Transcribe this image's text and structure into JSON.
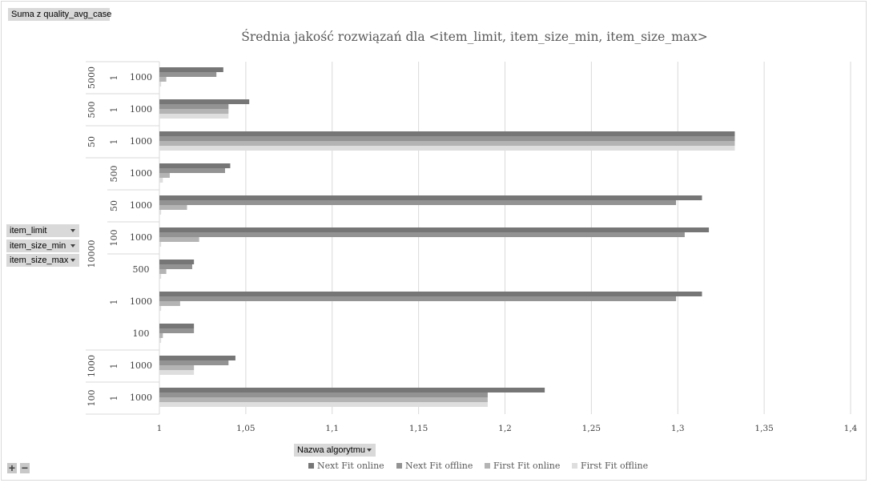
{
  "value_field_label": "Suma z quality_avg_case",
  "row_fields": [
    {
      "label": "item_limit"
    },
    {
      "label": "item_size_min"
    },
    {
      "label": "item_size_max"
    }
  ],
  "column_field_label": "Nazwa algorytmu",
  "colors": {
    "next_fit_online": "#767676",
    "next_fit_offline": "#939393",
    "first_fit_online": "#b4b4b4",
    "first_fit_offline": "#dedede",
    "gridline": "#d9d9d9",
    "axis_text": "#404040",
    "field_button": "#d9d9d9"
  },
  "icons": {
    "expand": "plus-icon",
    "collapse": "minus-icon",
    "dropdown": "chevron-down-icon"
  },
  "controls": {
    "expand_label": "+",
    "collapse_label": "−"
  },
  "chart_data": {
    "type": "bar",
    "orientation": "horizontal",
    "title": "Średnia jakość rozwiązań dla <item_limit, item_size_min, item_size_max>",
    "xlim": [
      1,
      1.4
    ],
    "x_ticks": [
      "1",
      "1,05",
      "1,1",
      "1,15",
      "1,2",
      "1,25",
      "1,3",
      "1,35",
      "1,4"
    ],
    "grid": true,
    "legend_position": "bottom",
    "category_groups": [
      {
        "item_limit": "5000",
        "subgroups": [
          {
            "item_size_min": "1",
            "categories": [
              "1000"
            ]
          }
        ]
      },
      {
        "item_limit": "500",
        "subgroups": [
          {
            "item_size_min": "1",
            "categories": [
              "1000"
            ]
          }
        ]
      },
      {
        "item_limit": "50",
        "subgroups": [
          {
            "item_size_min": "1",
            "categories": [
              "1000"
            ]
          }
        ]
      },
      {
        "item_limit": "10000",
        "subgroups": [
          {
            "item_size_min": "500",
            "categories": [
              "1000"
            ]
          },
          {
            "item_size_min": "50",
            "categories": [
              "1000"
            ]
          },
          {
            "item_size_min": "100",
            "categories": [
              "1000"
            ]
          },
          {
            "item_size_min": "1",
            "categories": [
              "500",
              "1000",
              "100"
            ]
          }
        ]
      },
      {
        "item_limit": "1000",
        "subgroups": [
          {
            "item_size_min": "1",
            "categories": [
              "1000"
            ]
          }
        ]
      },
      {
        "item_limit": "100",
        "subgroups": [
          {
            "item_size_min": "1",
            "categories": [
              "1000"
            ]
          }
        ]
      }
    ],
    "series": [
      {
        "name": "Next Fit online",
        "values": [
          1.037,
          1.052,
          1.333,
          1.041,
          1.314,
          1.318,
          1.02,
          1.314,
          1.02,
          1.044,
          1.223
        ]
      },
      {
        "name": "Next Fit offline",
        "values": [
          1.033,
          1.04,
          1.333,
          1.038,
          1.299,
          1.304,
          1.019,
          1.299,
          1.02,
          1.04,
          1.19
        ]
      },
      {
        "name": "First Fit online",
        "values": [
          1.004,
          1.04,
          1.333,
          1.006,
          1.016,
          1.023,
          1.004,
          1.012,
          1.002,
          1.02,
          1.19
        ]
      },
      {
        "name": "First Fit offline",
        "values": [
          1.001,
          1.04,
          1.333,
          1.002,
          1.001,
          1.001,
          1.001,
          1.001,
          1.001,
          1.02,
          1.19
        ]
      }
    ]
  }
}
